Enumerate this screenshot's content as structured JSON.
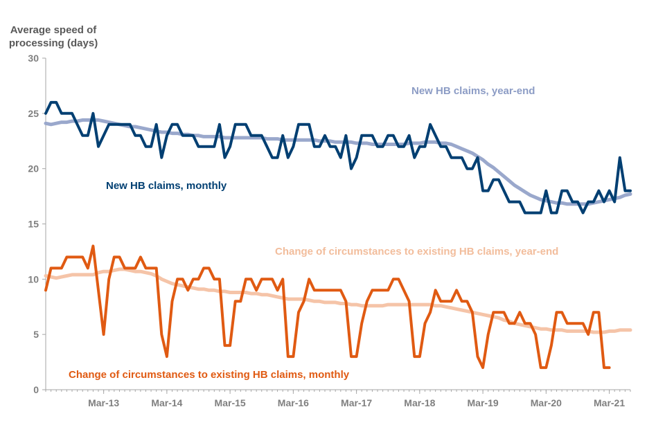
{
  "chart_data": {
    "type": "line",
    "title": "",
    "ylabel_lines": [
      "Average speed of",
      "processing (days)"
    ],
    "xlabel": "",
    "ylim": [
      0,
      30
    ],
    "yticks": [
      "0",
      "5",
      "10",
      "15",
      "20",
      "25",
      "30"
    ],
    "x_tick_labels": [
      "Mar-13",
      "Mar-14",
      "Mar-15",
      "Mar-16",
      "Mar-17",
      "Mar-18",
      "Mar-19",
      "Mar-20",
      "Mar-21"
    ],
    "x_start": "Apr-12",
    "x_end": "Mar-21",
    "grid": false,
    "series": [
      {
        "name": "New HB claims, monthly",
        "color": "#003f72",
        "values": [
          25,
          26,
          26,
          25,
          25,
          25,
          24,
          23,
          23,
          25,
          22,
          23,
          24,
          24,
          24,
          24,
          24,
          23,
          23,
          22,
          22,
          24,
          21,
          23,
          24,
          24,
          23,
          23,
          23,
          22,
          22,
          22,
          22,
          24,
          21,
          22,
          24,
          24,
          24,
          23,
          23,
          23,
          22,
          21,
          21,
          23,
          21,
          22,
          24,
          24,
          24,
          22,
          22,
          23,
          22,
          22,
          21,
          23,
          20,
          21,
          23,
          23,
          23,
          22,
          22,
          23,
          23,
          22,
          22,
          23,
          21,
          22,
          22,
          24,
          23,
          22,
          22,
          21,
          21,
          21,
          20,
          20,
          21,
          18,
          18,
          19,
          19,
          18,
          17,
          17,
          17,
          16,
          16,
          16,
          16,
          18,
          16,
          16,
          18,
          18,
          17,
          17,
          16,
          17,
          17,
          18,
          17,
          18,
          17,
          21,
          18,
          18
        ]
      },
      {
        "name": "New HB claims, year-end",
        "color": "#9aa8cc",
        "values": [
          24.1,
          24.0,
          24.1,
          24.2,
          24.2,
          24.3,
          24.3,
          24.4,
          24.4,
          24.4,
          24.4,
          24.3,
          24.2,
          24.1,
          24.0,
          23.9,
          23.8,
          23.8,
          23.7,
          23.6,
          23.5,
          23.4,
          23.3,
          23.3,
          23.2,
          23.2,
          23.1,
          23.1,
          23.0,
          23.0,
          22.9,
          22.9,
          22.9,
          22.9,
          22.8,
          22.8,
          22.8,
          22.8,
          22.8,
          22.8,
          22.8,
          22.8,
          22.7,
          22.7,
          22.7,
          22.6,
          22.6,
          22.6,
          22.6,
          22.6,
          22.6,
          22.6,
          22.5,
          22.5,
          22.5,
          22.4,
          22.4,
          22.4,
          22.4,
          22.3,
          22.3,
          22.3,
          22.2,
          22.2,
          22.2,
          22.2,
          22.2,
          22.2,
          22.2,
          22.3,
          22.3,
          22.3,
          22.4,
          22.4,
          22.4,
          22.3,
          22.3,
          22.2,
          22.0,
          21.8,
          21.6,
          21.4,
          21.1,
          20.8,
          20.4,
          20.1,
          19.7,
          19.3,
          18.9,
          18.5,
          18.2,
          17.9,
          17.6,
          17.4,
          17.2,
          17.1,
          17.0,
          16.9,
          16.9,
          16.8,
          16.8,
          16.8,
          16.8,
          16.8,
          16.9,
          17.0,
          17.1,
          17.2,
          17.3,
          17.4,
          17.6,
          17.7
        ]
      },
      {
        "name": "Change of circumstances to existing HB claims, monthly",
        "color": "#e05a12",
        "values": [
          9,
          11,
          11,
          11,
          12,
          12,
          12,
          12,
          11,
          13,
          9,
          5,
          10,
          12,
          12,
          11,
          11,
          11,
          12,
          11,
          11,
          11,
          5,
          3,
          8,
          10,
          10,
          9,
          10,
          10,
          11,
          11,
          10,
          10,
          4,
          4,
          8,
          8,
          10,
          10,
          9,
          10,
          10,
          10,
          9,
          10,
          3,
          3,
          7,
          8,
          10,
          9,
          9,
          9,
          9,
          9,
          9,
          8,
          3,
          3,
          6,
          8,
          9,
          9,
          9,
          9,
          10,
          10,
          9,
          8,
          3,
          3,
          6,
          7,
          9,
          8,
          8,
          8,
          9,
          8,
          8,
          7,
          3,
          2,
          5,
          7,
          7,
          7,
          6,
          6,
          7,
          6,
          6,
          5,
          2,
          2,
          4,
          7,
          7,
          6,
          6,
          6,
          6,
          5,
          7,
          7,
          2,
          2
        ]
      },
      {
        "name": "Change of circumstances to existing HB claims, year-end",
        "color": "#f5c4a8",
        "values": [
          10.3,
          10.2,
          10.1,
          10.2,
          10.3,
          10.4,
          10.4,
          10.4,
          10.4,
          10.4,
          10.6,
          10.7,
          10.7,
          10.8,
          10.9,
          10.9,
          10.8,
          10.7,
          10.7,
          10.6,
          10.5,
          10.3,
          10.0,
          9.8,
          9.6,
          9.5,
          9.4,
          9.3,
          9.2,
          9.1,
          9.1,
          9.0,
          9.0,
          8.9,
          8.9,
          8.8,
          8.8,
          8.8,
          8.8,
          8.7,
          8.7,
          8.6,
          8.6,
          8.5,
          8.4,
          8.3,
          8.2,
          8.2,
          8.2,
          8.2,
          8.1,
          8.0,
          8.0,
          7.9,
          7.9,
          7.9,
          7.8,
          7.8,
          7.7,
          7.7,
          7.6,
          7.6,
          7.6,
          7.6,
          7.6,
          7.7,
          7.7,
          7.7,
          7.7,
          7.7,
          7.7,
          7.7,
          7.7,
          7.7,
          7.6,
          7.6,
          7.5,
          7.4,
          7.3,
          7.2,
          7.1,
          7.0,
          6.9,
          6.8,
          6.7,
          6.6,
          6.5,
          6.3,
          6.2,
          6.0,
          5.9,
          5.8,
          5.7,
          5.6,
          5.5,
          5.5,
          5.4,
          5.4,
          5.4,
          5.3,
          5.3,
          5.3,
          5.3,
          5.3,
          5.2,
          5.2,
          5.2,
          5.3,
          5.3,
          5.4,
          5.4,
          5.4
        ]
      }
    ],
    "annotations": [
      {
        "text": "New HB claims, year-end",
        "color": "#8c9cc5"
      },
      {
        "text": "New HB claims, monthly",
        "color": "#003f72"
      },
      {
        "text": "Change of circumstances to existing HB claims, year-end",
        "color": "#f2bd9c"
      },
      {
        "text": "Change of circumstances to existing HB claims, monthly",
        "color": "#e05a12"
      }
    ]
  }
}
